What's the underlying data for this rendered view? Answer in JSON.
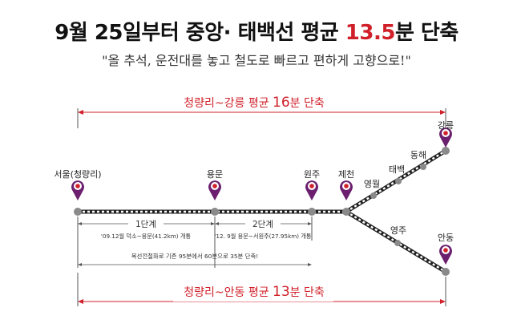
{
  "title": {
    "prefix": "9월 25일부터 중앙· 태백선 평균 ",
    "highlight": "13.5",
    "suffix": "분 단축"
  },
  "subtitle": "\"올 추석, 운전대를 놓고 철도로 빠르고 편하게 고향으로!\"",
  "top_span": {
    "prefix": "청량리~강릉 평균 ",
    "num": "16",
    "suffix": "분 단축"
  },
  "bottom_span": {
    "prefix": "청량리~안동 평균 ",
    "num": "13",
    "suffix": "분 단축"
  },
  "stations": {
    "seoul": "서울(청량리)",
    "yongmun": "용문",
    "wonju": "원주",
    "jecheon": "제천",
    "yeongwol": "영월",
    "taebaek": "태백",
    "donghae": "동해",
    "gangneung": "강릉",
    "yeongju": "영주",
    "andong": "안동"
  },
  "phases": {
    "phase1_label": "1단계",
    "phase1_detail": "'09.12월 덕소~용문(41.2km) 개통",
    "phase2_label": "2단계",
    "phase2_detail": "'12. 9월 용문~서원주(27.95km) 개통",
    "note": "복선전철화로 기존 95분에서 60분으로 35분 단축!"
  },
  "colors": {
    "accent": "#d0202a",
    "marker": "#6b1f6e",
    "track": "#222222",
    "station_dot": "#8a8a8a"
  }
}
